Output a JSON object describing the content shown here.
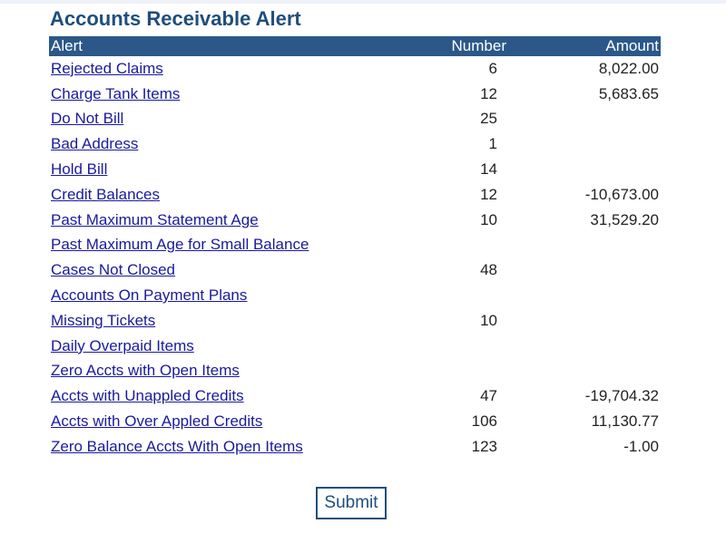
{
  "page": {
    "title": "Accounts Receivable Alert"
  },
  "table": {
    "headers": {
      "alert": "Alert",
      "number": "Number",
      "amount": "Amount"
    },
    "rows": [
      {
        "alert": "Rejected Claims",
        "number": "6",
        "amount": "8,022.00"
      },
      {
        "alert": "Charge Tank Items",
        "number": "12",
        "amount": "5,683.65"
      },
      {
        "alert": "Do Not Bill",
        "number": "25",
        "amount": ""
      },
      {
        "alert": "Bad Address",
        "number": "1",
        "amount": ""
      },
      {
        "alert": "Hold Bill",
        "number": "14",
        "amount": ""
      },
      {
        "alert": "Credit Balances",
        "number": "12",
        "amount": "-10,673.00"
      },
      {
        "alert": "Past Maximum Statement Age",
        "number": "10",
        "amount": "31,529.20"
      },
      {
        "alert": "Past Maximum Age for Small Balance",
        "number": "",
        "amount": ""
      },
      {
        "alert": "Cases Not Closed",
        "number": "48",
        "amount": ""
      },
      {
        "alert": "Accounts On Payment Plans",
        "number": "",
        "amount": ""
      },
      {
        "alert": "Missing Tickets",
        "number": "10",
        "amount": ""
      },
      {
        "alert": "Daily Overpaid Items",
        "number": "",
        "amount": ""
      },
      {
        "alert": "Zero Accts with Open Items",
        "number": "",
        "amount": ""
      },
      {
        "alert": "Accts with Unappled Credits",
        "number": "47",
        "amount": "-19,704.32"
      },
      {
        "alert": "Accts with Over Appled Credits",
        "number": "106",
        "amount": "11,130.77"
      },
      {
        "alert": "Zero Balance Accts With Open Items",
        "number": "123",
        "amount": "-1.00"
      }
    ]
  },
  "actions": {
    "submit_label": "Submit"
  },
  "colors": {
    "title": "#1f4e7d",
    "header_bg": "#2b5889",
    "link": "#1a1a9c"
  }
}
